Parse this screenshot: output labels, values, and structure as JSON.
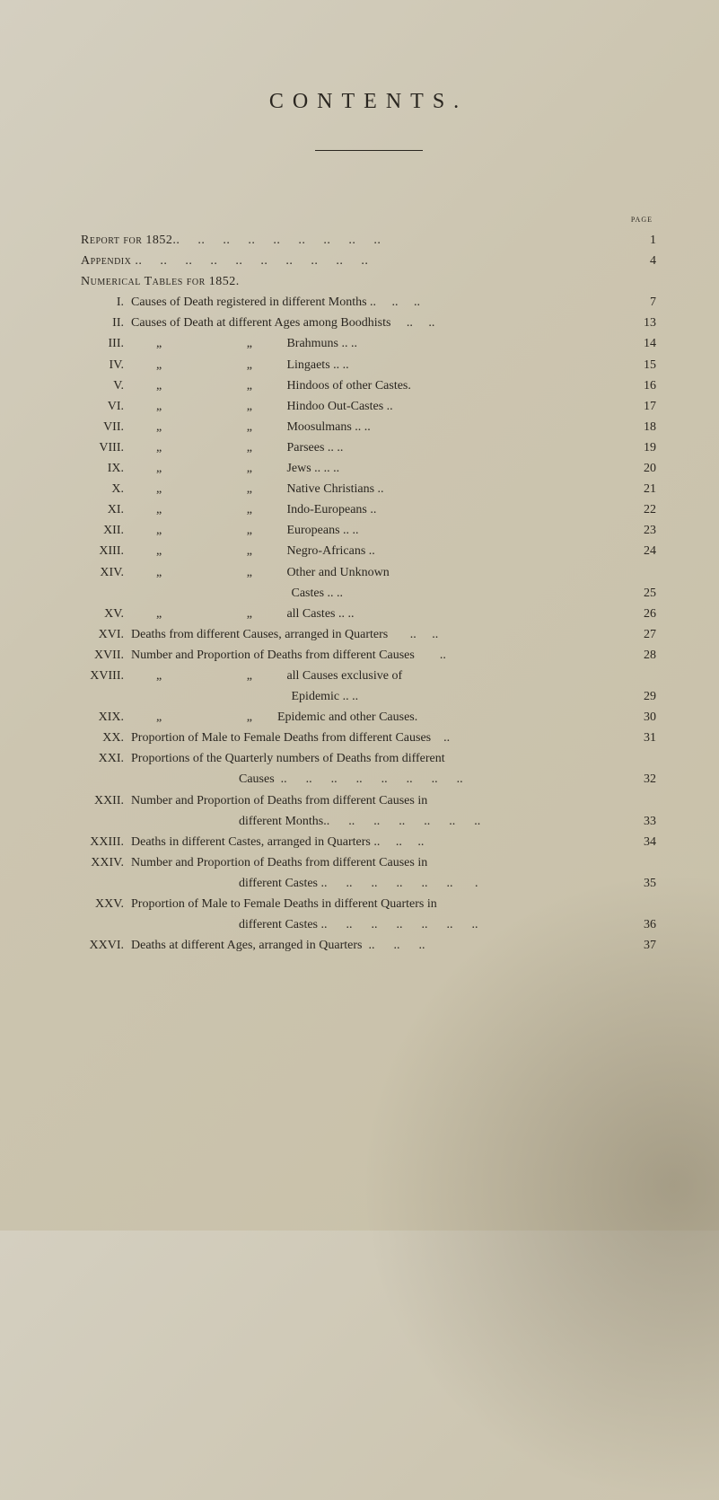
{
  "title": "CONTENTS.",
  "page_label": "page",
  "top_entries": [
    {
      "label": "Report for 1852..     ..     ..     ..     ..     ..     ..     ..     ..",
      "page": "1"
    },
    {
      "label": "Appendix ..     ..     ..     ..     ..     ..     ..     ..     ..     ..",
      "page": "4"
    },
    {
      "label": "Numerical Tables for 1852.",
      "page": ""
    }
  ],
  "numbered": [
    {
      "num": "I.",
      "text": "Causes of Death registered in different Months ..     ..     ..",
      "page": "7"
    },
    {
      "num": "II.",
      "text": "Causes of Death at different Ages among Boodhists     ..     ..",
      "page": "13"
    },
    {
      "num": "III.",
      "left": "        „                           „           ",
      "right": "Brahmuns     ..     ..",
      "page": "14"
    },
    {
      "num": "IV.",
      "left": "        „                           „           ",
      "right": "Lingaets        ..     ..",
      "page": "15"
    },
    {
      "num": "V.",
      "left": "        „                           „           ",
      "right": "Hindoos of other Castes.",
      "page": "16"
    },
    {
      "num": "VI.",
      "left": "        „                           „           ",
      "right": "Hindoo Out-Castes  ..",
      "page": "17"
    },
    {
      "num": "VII.",
      "left": "        „                           „           ",
      "right": "Moosulmans ..     ..",
      "page": "18"
    },
    {
      "num": "VIII.",
      "left": "        „                           „           ",
      "right": "Parsees          ..     ..",
      "page": "19"
    },
    {
      "num": "IX.",
      "left": "        „                           „           ",
      "right": "Jews  ..      ..     ..",
      "page": "20"
    },
    {
      "num": "X.",
      "left": "        „                           „           ",
      "right": "Native Christians      ..",
      "page": "21"
    },
    {
      "num": "XI.",
      "left": "        „                           „           ",
      "right": "Indo-Europeans      ..",
      "page": "22"
    },
    {
      "num": "XII.",
      "left": "        „                           „           ",
      "right": "Europeans     ..     ..",
      "page": "23"
    },
    {
      "num": "XIII.",
      "left": "        „                           „           ",
      "right": "Negro-Africans         ..",
      "page": "24"
    },
    {
      "num": "XIV.",
      "left": "        „                           „           ",
      "right": "Other   and   Unknown",
      "page": ""
    },
    {
      "num": "",
      "left": "                                                   ",
      "right": "Castes         ..     ..",
      "page": "25"
    },
    {
      "num": "XV.",
      "left": "        „                           „           ",
      "right": "all Castes      ..     ..",
      "page": "26"
    },
    {
      "num": "XVI.",
      "text": "Deaths from different Causes, arranged in Quarters       ..     ..",
      "page": "27"
    },
    {
      "num": "XVII.",
      "text": "Number and Proportion of Deaths from different Causes        ..",
      "page": "28"
    },
    {
      "num": "XVIII.",
      "left": "        „                           „           ",
      "right": "all Causes exclusive of",
      "page": ""
    },
    {
      "num": "",
      "left": "                                                   ",
      "right": "Epidemic  ..       ..",
      "page": "29"
    },
    {
      "num": "XIX.",
      "left": "        „                           „        ",
      "right": "Epidemic and other Causes.",
      "page": "30"
    },
    {
      "num": "XX.",
      "text": "Proportion of Male to Female Deaths from different Causes    ..",
      "page": "31"
    },
    {
      "num": "XXI.",
      "text": "Proportions of the Quarterly numbers of Deaths from different",
      "page": ""
    },
    {
      "num": "",
      "cont": "Causes  ..      ..      ..      ..      ..      ..      ..      ..",
      "page": "32"
    },
    {
      "num": "XXII.",
      "text": "Number and Proportion of Deaths from different Causes in",
      "page": ""
    },
    {
      "num": "",
      "cont": "different Months..      ..      ..      ..      ..      ..      ..",
      "page": "33"
    },
    {
      "num": "XXIII.",
      "text": "Deaths in different Castes, arranged in Quarters ..     ..     ..",
      "page": "34"
    },
    {
      "num": "XXIV.",
      "text": "Number and Proportion of Deaths from different Causes in",
      "page": ""
    },
    {
      "num": "",
      "cont": "different Castes ..      ..      ..      ..      ..      ..       .",
      "page": "35"
    },
    {
      "num": "XXV.",
      "text": "Proportion of Male to Female Deaths in different Quarters in",
      "page": ""
    },
    {
      "num": "",
      "cont": "different Castes ..      ..      ..      ..      ..      ..      ..",
      "page": "36"
    },
    {
      "num": "XXVI.",
      "text": "Deaths at different Ages, arranged in Quarters  ..      ..      ..",
      "page": "37"
    }
  ],
  "colors": {
    "background": "#ccc5b0",
    "text": "#2a2620"
  },
  "typography": {
    "title_fontsize": 24,
    "body_fontsize": 14,
    "font_family": "Georgia, Times New Roman, serif"
  }
}
